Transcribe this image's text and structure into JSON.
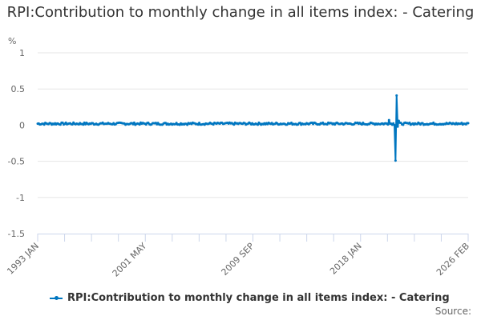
{
  "chart_data": {
    "type": "line",
    "title": "RPI:Contribution to monthly change in all items index: - Catering",
    "ylabel": "%",
    "xlabel": "",
    "ylim": [
      -1.5,
      1
    ],
    "yticks": [
      "1",
      "0.5",
      "0",
      "-0.5",
      "-1",
      "-1.5"
    ],
    "ytick_values": [
      1,
      0.5,
      0,
      -0.5,
      -1,
      -1.5
    ],
    "xtick_labels": [
      "1993 JAN",
      "2001 MAY",
      "2009 SEP",
      "2018 JAN",
      "2026 FEB"
    ],
    "x_start": "1993 JAN",
    "x_end": "2026 FEB",
    "grid": true,
    "legend_position": "bottom",
    "series": [
      {
        "name": "RPI:Contribution to monthly change in all items index: - Catering",
        "color": "#0076c0",
        "baseline_value_approx": 0.02,
        "notable_points": [
          {
            "x": "2020 (approx)",
            "y": 0.07
          },
          {
            "x": "2020 (approx)",
            "y": -0.49
          },
          {
            "x": "2020 (approx)",
            "y": 0.41
          },
          {
            "x": "2020 (approx)",
            "y": -0.02
          }
        ],
        "values": []
      }
    ]
  },
  "header": {
    "title": "RPI:Contribution to monthly change in all items index: - Catering",
    "unit": "%"
  },
  "legend": {
    "label": "RPI:Contribution to monthly change in all items index: - Catering"
  },
  "footer": {
    "source": "Source:"
  }
}
